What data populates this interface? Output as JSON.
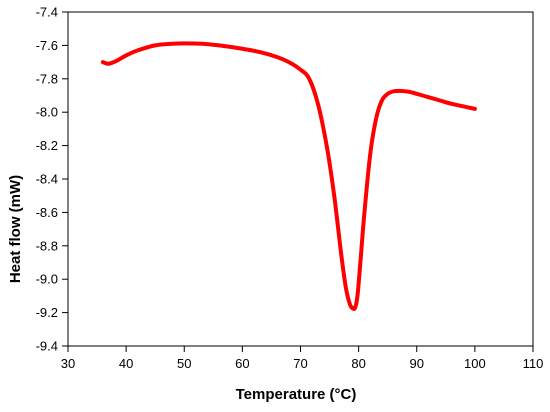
{
  "chart_data": {
    "type": "line",
    "title": "",
    "xlabel": "Temperature (°C)",
    "ylabel": "Heat flow (mW)",
    "xlim": [
      30,
      110
    ],
    "ylim": [
      -9.4,
      -7.4
    ],
    "xticks": [
      30,
      40,
      50,
      60,
      70,
      80,
      90,
      100,
      110
    ],
    "yticks": [
      -7.4,
      -7.6,
      -7.8,
      -8.0,
      -8.2,
      -8.4,
      -8.6,
      -8.8,
      -9.0,
      -9.2,
      -9.4
    ],
    "xtick_labels": [
      "30",
      "40",
      "50",
      "60",
      "70",
      "80",
      "90",
      "100",
      "110"
    ],
    "ytick_labels": [
      "-7.4",
      "-7.6",
      "-7.8",
      "-8.0",
      "-8.2",
      "-8.4",
      "-8.6",
      "-8.8",
      "-9.0",
      "-9.2",
      "-9.4"
    ],
    "grid": false,
    "legend": "none",
    "series": [
      {
        "color": "#ff0000",
        "x": [
          36,
          36.8,
          37.5,
          38.5,
          40,
          42,
          45,
          48,
          50,
          53,
          56,
          60,
          63,
          66,
          68,
          70,
          71.5,
          73,
          74.5,
          75.8,
          77,
          77.8,
          78.5,
          79,
          79.4,
          79.8,
          80.3,
          81,
          82,
          83,
          84,
          85,
          86,
          87,
          88,
          89,
          90,
          92,
          94,
          96,
          98,
          100
        ],
        "y": [
          -7.7,
          -7.71,
          -7.705,
          -7.69,
          -7.66,
          -7.63,
          -7.6,
          -7.59,
          -7.588,
          -7.59,
          -7.6,
          -7.62,
          -7.64,
          -7.67,
          -7.7,
          -7.745,
          -7.8,
          -7.95,
          -8.2,
          -8.5,
          -8.85,
          -9.05,
          -9.15,
          -9.175,
          -9.17,
          -9.1,
          -8.9,
          -8.6,
          -8.25,
          -8.04,
          -7.93,
          -7.89,
          -7.875,
          -7.872,
          -7.875,
          -7.88,
          -7.89,
          -7.91,
          -7.93,
          -7.95,
          -7.965,
          -7.98
        ]
      }
    ]
  }
}
